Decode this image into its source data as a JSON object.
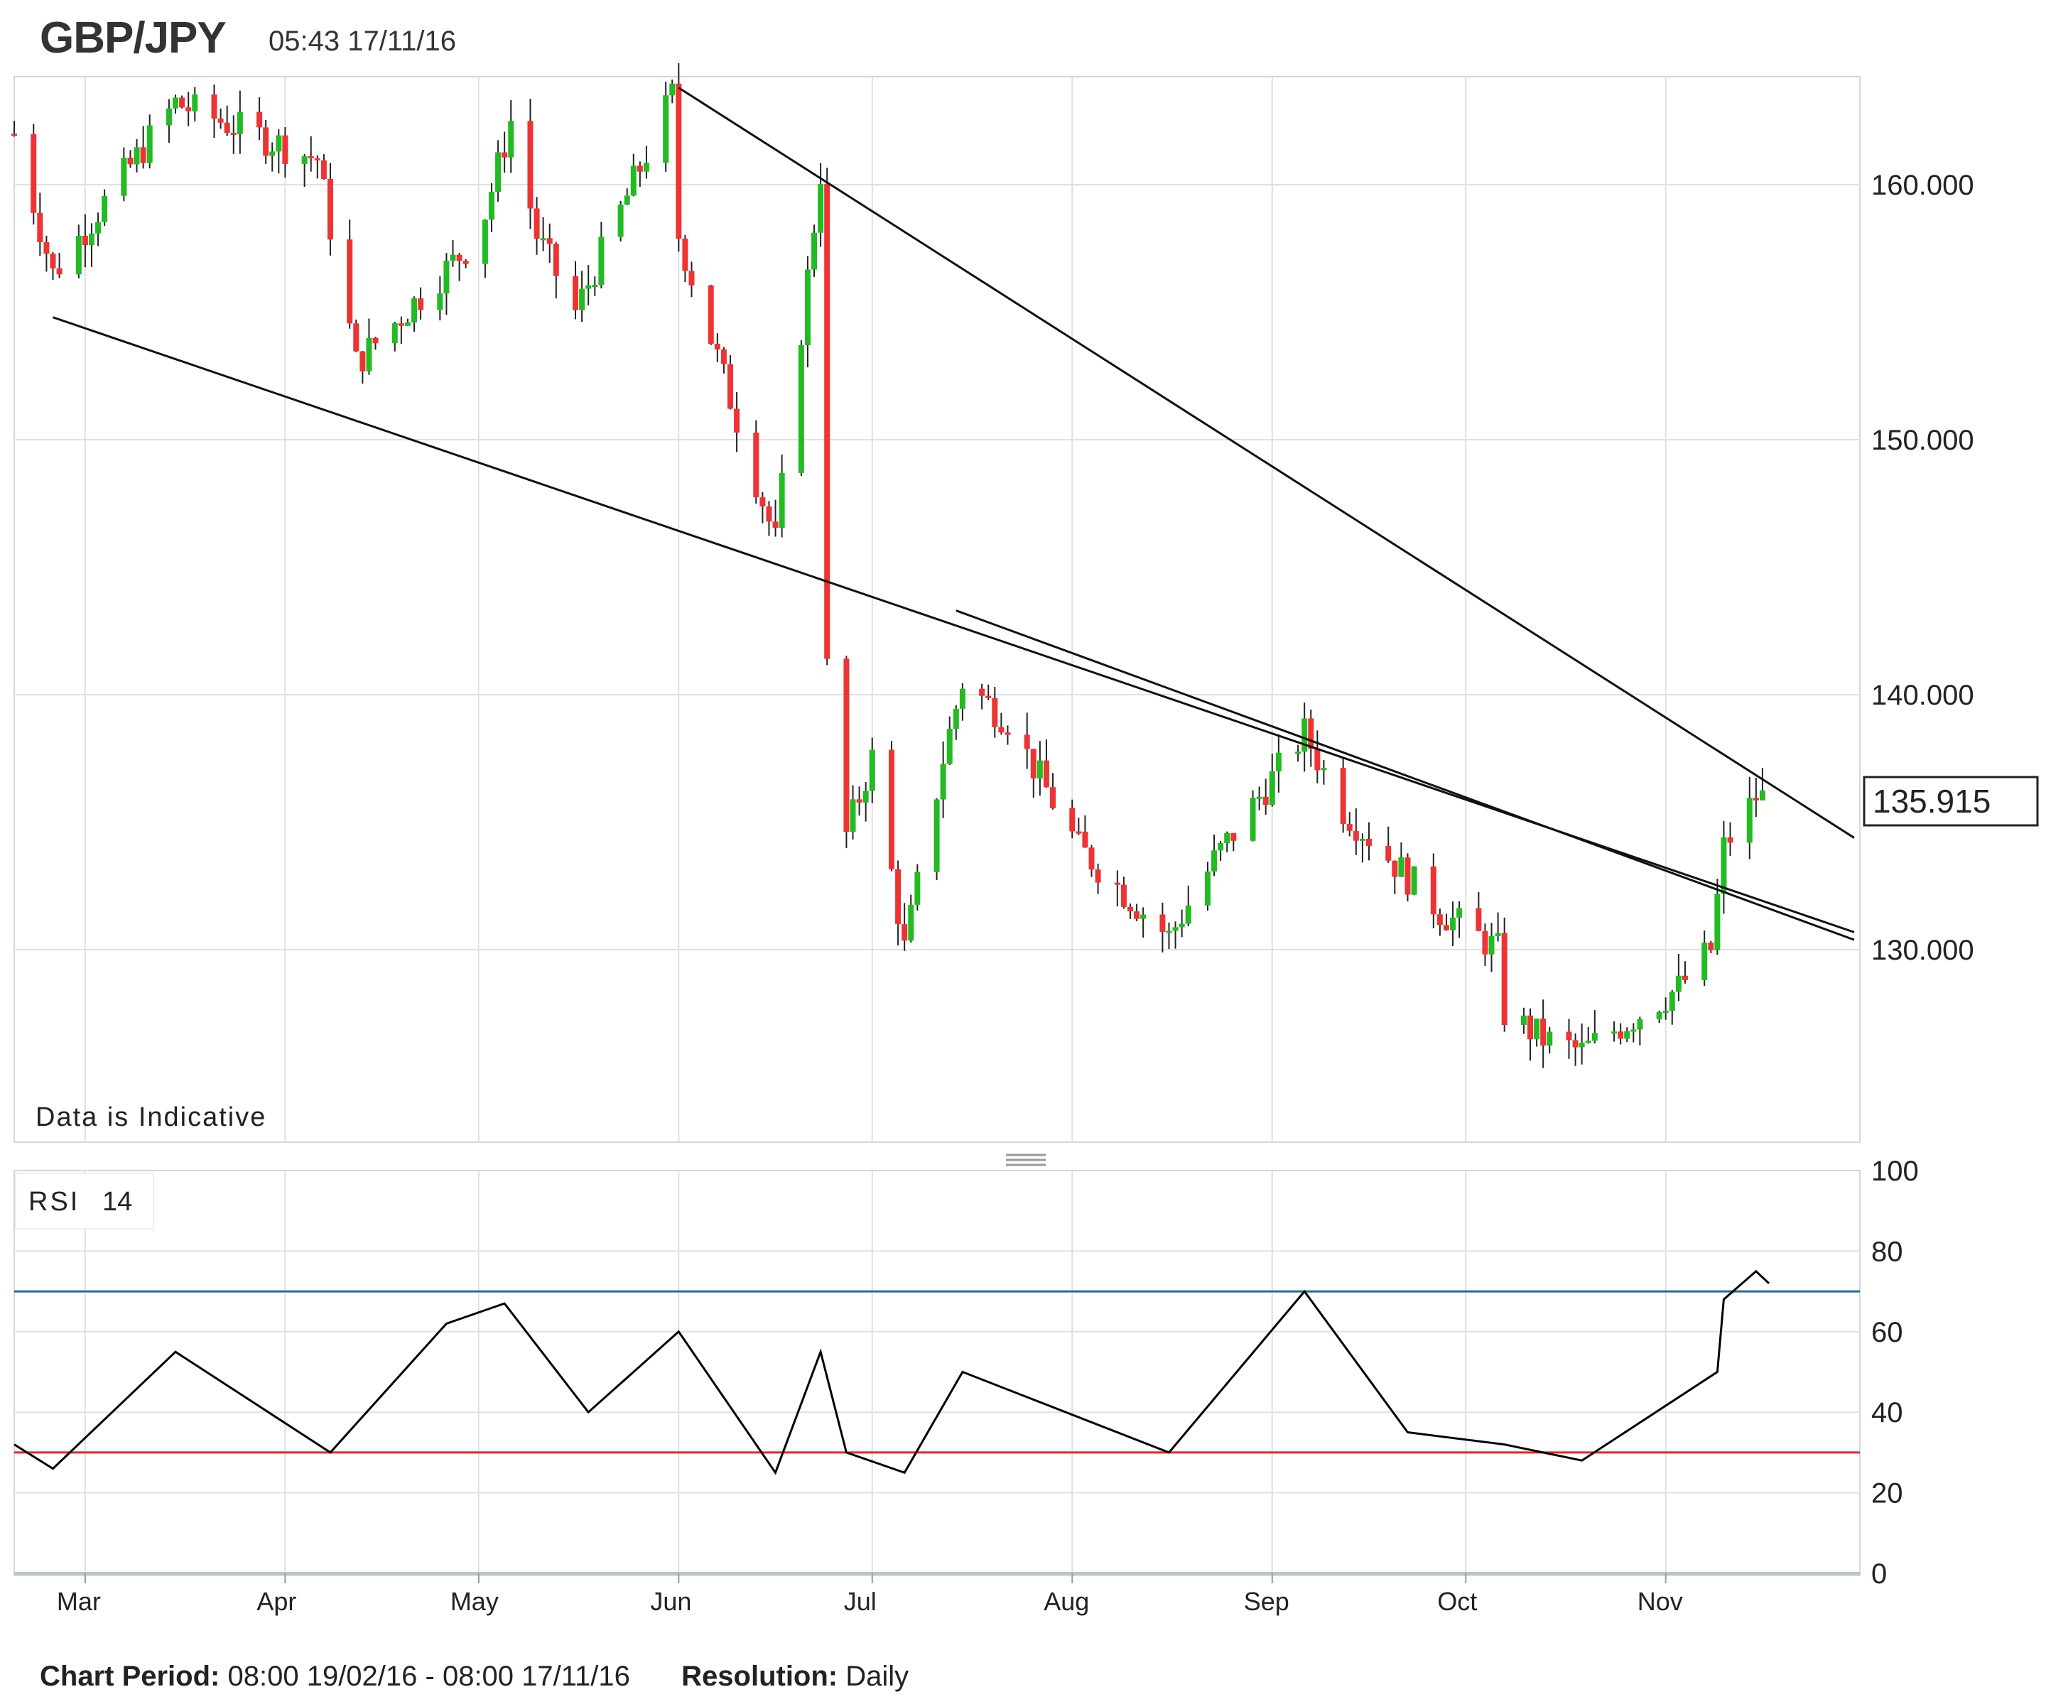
{
  "header": {
    "symbol": "GBP/JPY",
    "timestamp": "05:43 17/11/16"
  },
  "main_panel": {
    "note": "Data is Indicative",
    "last_price_label": "135.915",
    "y_ticks": [
      "160.000",
      "150.000",
      "140.000",
      "130.000"
    ]
  },
  "rsi_panel": {
    "label": "RSI",
    "period": "14",
    "y_ticks": [
      "100",
      "80",
      "60",
      "40",
      "20",
      "0"
    ],
    "overbought": 70,
    "oversold": 30
  },
  "x_ticks": [
    "Mar",
    "Apr",
    "May",
    "Jun",
    "Jul",
    "Aug",
    "Sep",
    "Oct",
    "Nov"
  ],
  "footer": {
    "period_label": "Chart Period:",
    "period_value": "08:00 19/02/16 - 08:00 17/11/16",
    "resolution_label": "Resolution:",
    "resolution_value": "Daily"
  },
  "colors": {
    "up": "#22bb22",
    "down": "#ee3333",
    "overbought_line": "#1f6f8f",
    "oversold_line": "#ee2222",
    "grid": "#e0e0e0"
  },
  "chart_data": [
    {
      "type": "candlestick",
      "title": "GBP/JPY",
      "x_range": [
        "2016-02-19",
        "2016-11-17"
      ],
      "y_range": [
        122,
        164
      ],
      "last_price": 135.915,
      "key_points": [
        {
          "date": "2016-02-19",
          "close": 162.0
        },
        {
          "date": "2016-02-25",
          "close": 156.5
        },
        {
          "date": "2016-03-15",
          "close": 163.2
        },
        {
          "date": "2016-04-06",
          "close": 161.0
        },
        {
          "date": "2016-04-12",
          "close": 153.0
        },
        {
          "date": "2016-05-01",
          "close": 158.0
        },
        {
          "date": "2016-05-06",
          "close": 162.5
        },
        {
          "date": "2016-05-10",
          "close": 158.0
        },
        {
          "date": "2016-05-16",
          "close": 155.0
        },
        {
          "date": "2016-05-31",
          "close": 163.5
        },
        {
          "date": "2016-06-01",
          "close": 158.0
        },
        {
          "date": "2016-06-16",
          "close": 146.0
        },
        {
          "date": "2016-06-23",
          "close": 160.5
        },
        {
          "date": "2016-06-24",
          "close": 141.0
        },
        {
          "date": "2016-06-27",
          "close": 134.5
        },
        {
          "date": "2016-07-01",
          "close": 137.5
        },
        {
          "date": "2016-07-06",
          "close": 130.0
        },
        {
          "date": "2016-07-12",
          "close": 137.5
        },
        {
          "date": "2016-07-15",
          "close": 140.5
        },
        {
          "date": "2016-07-22",
          "close": 139.0
        },
        {
          "date": "2016-08-02",
          "close": 134.0
        },
        {
          "date": "2016-08-16",
          "close": 130.5
        },
        {
          "date": "2016-08-23",
          "close": 133.5
        },
        {
          "date": "2016-09-06",
          "close": 138.5
        },
        {
          "date": "2016-09-12",
          "close": 135.5
        },
        {
          "date": "2016-09-27",
          "close": 131.5
        },
        {
          "date": "2016-10-06",
          "close": 130.0
        },
        {
          "date": "2016-10-07",
          "close": 127.5
        },
        {
          "date": "2016-10-13",
          "close": 126.5
        },
        {
          "date": "2016-10-19",
          "close": 126.0
        },
        {
          "date": "2016-11-03",
          "close": 128.5
        },
        {
          "date": "2016-11-08",
          "close": 130.0
        },
        {
          "date": "2016-11-10",
          "close": 134.0
        },
        {
          "date": "2016-11-15",
          "close": 136.0
        },
        {
          "date": "2016-11-17",
          "close": 135.915
        }
      ],
      "trendlines": [
        {
          "from": {
            "date": "2016-02-25",
            "price": 154.8
          },
          "to": {
            "date": "2016-11-17",
            "price": 131.8
          }
        },
        {
          "from": {
            "date": "2016-06-01",
            "price": 163.8
          },
          "to": {
            "date": "2016-11-17",
            "price": 135.5
          }
        },
        {
          "from": {
            "date": "2016-07-14",
            "price": 143.3
          },
          "to": {
            "date": "2016-11-17",
            "price": 131.5
          }
        }
      ]
    },
    {
      "type": "line",
      "title": "RSI 14",
      "ylim": [
        0,
        100
      ],
      "x": [
        "2016-02-19",
        "2016-02-25",
        "2016-03-15",
        "2016-04-08",
        "2016-04-26",
        "2016-05-05",
        "2016-05-18",
        "2016-06-01",
        "2016-06-16",
        "2016-06-23",
        "2016-06-27",
        "2016-07-06",
        "2016-07-15",
        "2016-08-16",
        "2016-09-06",
        "2016-09-22",
        "2016-10-07",
        "2016-10-19",
        "2016-11-09",
        "2016-11-10",
        "2016-11-15",
        "2016-11-17"
      ],
      "values": [
        32,
        26,
        55,
        30,
        62,
        67,
        40,
        60,
        25,
        55,
        30,
        25,
        50,
        30,
        70,
        35,
        32,
        28,
        50,
        68,
        75,
        72
      ]
    }
  ]
}
